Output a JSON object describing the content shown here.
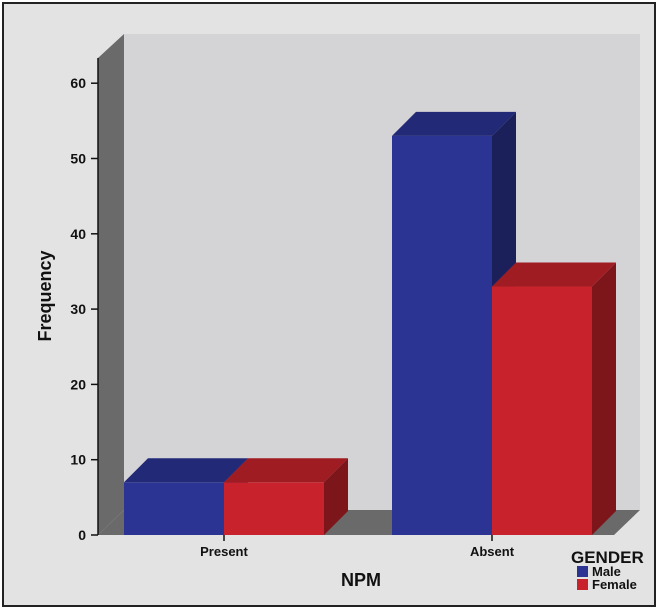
{
  "chart_data": {
    "type": "bar",
    "categories": [
      "Present",
      "Absent"
    ],
    "series": [
      {
        "name": "Male",
        "values": [
          7,
          53
        ]
      },
      {
        "name": "Female",
        "values": [
          7,
          33
        ]
      }
    ],
    "xlabel": "NPM",
    "ylabel": "Frequency",
    "ylim": [
      0,
      65
    ],
    "yticks": [
      0,
      10,
      20,
      30,
      40,
      50,
      60
    ],
    "legend": {
      "title": "GENDER",
      "position": "bottom-right"
    },
    "colors": {
      "Male": "#2b3393",
      "Female": "#c8232c"
    },
    "style": "3d"
  }
}
